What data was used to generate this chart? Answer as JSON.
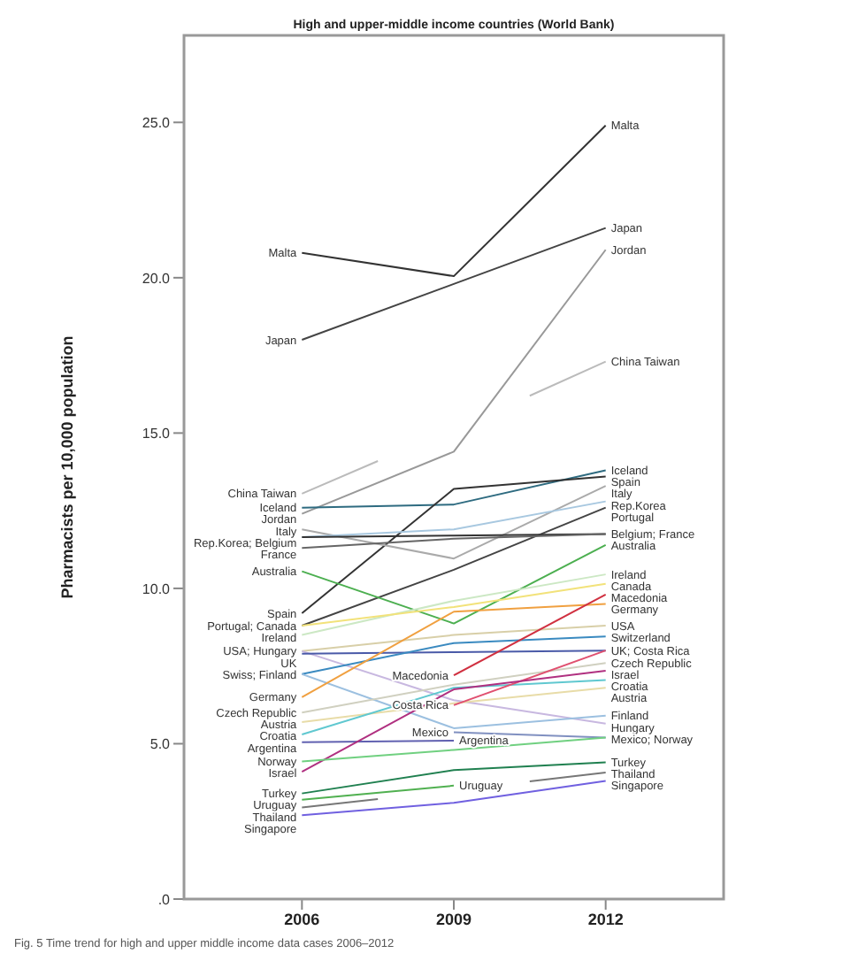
{
  "chart_data": {
    "type": "line",
    "title": "High and upper-middle income countries (World Bank)",
    "ylabel": "Pharmacists per 10,000 population",
    "x": [
      2006,
      2009,
      2012
    ],
    "xlim": [
      2003.67,
      2014.33
    ],
    "xticks": [
      2006,
      2009,
      2012
    ],
    "ylim": [
      0,
      27.8
    ],
    "yticks": [
      {
        "value": 0,
        "label": ".0"
      },
      {
        "value": 5,
        "label": "5.0"
      },
      {
        "value": 10,
        "label": "10.0"
      },
      {
        "value": 15,
        "label": "15.0"
      },
      {
        "value": 20,
        "label": "20.0"
      },
      {
        "value": 25,
        "label": "25.0"
      }
    ],
    "grid": false,
    "marker": "none",
    "line_style": "solid",
    "series": [
      {
        "color": "#333333",
        "values": [
          20.8,
          20.05,
          24.9
        ]
      },
      {
        "color": "#444444",
        "values": [
          18.0,
          19.8,
          21.6
        ]
      },
      {
        "color": "#999999",
        "values": [
          12.4,
          14.4,
          20.9
        ]
      },
      {
        "color": "#bbbbbb",
        "x": [
          2006,
          2007.5,
          2009,
          2010.5,
          2012
        ],
        "values": [
          13.05,
          14.1,
          null,
          16.2,
          17.3
        ]
      },
      {
        "color": "#2e6b80",
        "values": [
          12.6,
          12.7,
          13.8
        ]
      },
      {
        "color": "#333333",
        "values": [
          9.2,
          13.2,
          13.6
        ]
      },
      {
        "color": "#aaaaaa",
        "values": [
          11.9,
          10.96,
          13.3
        ]
      },
      {
        "color": "#a8c8e0",
        "values": [
          11.65,
          11.9,
          12.8
        ]
      },
      {
        "color": "#444444",
        "values": [
          8.8,
          10.6,
          12.6
        ]
      },
      {
        "color": "#333333",
        "values": [
          11.65,
          11.7,
          11.75
        ]
      },
      {
        "color": "#666666",
        "values": [
          11.3,
          11.6,
          11.75
        ]
      },
      {
        "color": "#4caf50",
        "values": [
          10.55,
          8.87,
          11.4
        ]
      },
      {
        "color": "#cce8c4",
        "values": [
          8.5,
          9.6,
          10.45
        ]
      },
      {
        "color": "#f2e27a",
        "values": [
          8.8,
          9.4,
          10.15
        ]
      },
      {
        "color": "#d8cfa8",
        "values": [
          7.98,
          8.5,
          8.8
        ]
      },
      {
        "color": "#c8b8e0",
        "values": [
          7.98,
          6.4,
          5.65
        ]
      },
      {
        "color": "#4a5aa8",
        "values": [
          7.9,
          7.95,
          8.0
        ]
      },
      {
        "color": "#3a8ac0",
        "values": [
          7.24,
          8.24,
          8.45
        ]
      },
      {
        "color": "#9cc0e0",
        "values": [
          7.24,
          5.5,
          5.9
        ]
      },
      {
        "color": "#f0a040",
        "values": [
          6.5,
          9.25,
          9.5
        ]
      },
      {
        "color": "#d0d0c0",
        "values": [
          6.0,
          6.9,
          7.6
        ]
      },
      {
        "color": "#e8dca8",
        "values": [
          5.7,
          6.3,
          6.8
        ]
      },
      {
        "color": "#60c8d0",
        "values": [
          5.3,
          6.8,
          7.05
        ]
      },
      {
        "color": "#6060b0",
        "values": [
          5.05,
          5.1,
          null
        ]
      },
      {
        "color": "#8090c0",
        "values": [
          null,
          5.37,
          5.2
        ]
      },
      {
        "color": "#d03040",
        "values": [
          null,
          7.2,
          9.8
        ]
      },
      {
        "color": "#e05070",
        "values": [
          null,
          6.24,
          8.0
        ]
      },
      {
        "color": "#b03080",
        "values": [
          4.1,
          6.75,
          7.35
        ]
      },
      {
        "color": "#70d080",
        "values": [
          4.43,
          4.8,
          5.2
        ]
      },
      {
        "color": "#208050",
        "values": [
          3.4,
          4.15,
          4.4
        ]
      },
      {
        "color": "#50b050",
        "values": [
          3.2,
          3.65,
          null
        ]
      },
      {
        "color": "#777777",
        "x": [
          2006,
          2007.5,
          2009,
          2010.5,
          2012
        ],
        "values": [
          2.95,
          3.22,
          null,
          3.79,
          4.07
        ]
      },
      {
        "color": "#7060e0",
        "values": [
          2.7,
          3.1,
          3.8
        ]
      }
    ],
    "annotations": [
      {
        "text": "Malta",
        "x": 2006,
        "y": 20.8
      },
      {
        "text": "Japan",
        "x": 2006,
        "y": 18.0
      },
      {
        "text": "China Taiwan",
        "x": 2006,
        "y": 13.05
      },
      {
        "text": "Iceland",
        "x": 2006,
        "y": 12.6
      },
      {
        "text": "Jordan",
        "x": 2006,
        "y": 12.4
      },
      {
        "text": "Italy",
        "x": 2006,
        "y": 11.9
      },
      {
        "text": "Rep.Korea; Belgium",
        "x": 2006,
        "y": 11.65
      },
      {
        "text": "France",
        "x": 2006,
        "y": 11.3
      },
      {
        "text": "Australia",
        "x": 2006,
        "y": 10.55
      },
      {
        "text": "Spain",
        "x": 2006,
        "y": 9.2
      },
      {
        "text": "Portugal; Canada",
        "x": 2006,
        "y": 8.8
      },
      {
        "text": "Ireland",
        "x": 2006,
        "y": 8.5
      },
      {
        "text": "USA; Hungary",
        "x": 2006,
        "y": 7.98
      },
      {
        "text": "UK",
        "x": 2006,
        "y": 7.9
      },
      {
        "text": "Swiss; Finland",
        "x": 2006,
        "y": 7.24
      },
      {
        "text": "Germany",
        "x": 2006,
        "y": 6.5
      },
      {
        "text": "Czech Republic",
        "x": 2006,
        "y": 6.0
      },
      {
        "text": "Austria",
        "x": 2006,
        "y": 5.7
      },
      {
        "text": "Croatia",
        "x": 2006,
        "y": 5.3
      },
      {
        "text": "Argentina",
        "x": 2006,
        "y": 5.05
      },
      {
        "text": "Norway",
        "x": 2006,
        "y": 4.43
      },
      {
        "text": "Israel",
        "x": 2006,
        "y": 4.1
      },
      {
        "text": "Turkey",
        "x": 2006,
        "y": 3.4
      },
      {
        "text": "Uruguay",
        "x": 2006,
        "y": 3.2
      },
      {
        "text": "Thailand",
        "x": 2006,
        "y": 2.95
      },
      {
        "text": "Singapore",
        "x": 2006,
        "y": 2.7
      },
      {
        "text": "Macedonia",
        "x": 2009,
        "y": 7.2
      },
      {
        "text": "Costa Rica",
        "x": 2009,
        "y": 6.24
      },
      {
        "text": "Mexico",
        "x": 2009,
        "y": 5.37
      },
      {
        "text": "Argentina",
        "x": 2009,
        "y": 5.1
      },
      {
        "text": "Uruguay",
        "x": 2009,
        "y": 3.65
      },
      {
        "text": "Malta",
        "x": 2012,
        "y": 24.9
      },
      {
        "text": "Japan",
        "x": 2012,
        "y": 21.6
      },
      {
        "text": "Jordan",
        "x": 2012,
        "y": 20.9
      },
      {
        "text": "China Taiwan",
        "x": 2012,
        "y": 17.3
      },
      {
        "text": "Iceland",
        "x": 2012,
        "y": 13.8
      },
      {
        "text": "Spain",
        "x": 2012,
        "y": 13.6
      },
      {
        "text": "Italy",
        "x": 2012,
        "y": 13.3
      },
      {
        "text": "Rep.Korea",
        "x": 2012,
        "y": 12.8
      },
      {
        "text": "Portugal",
        "x": 2012,
        "y": 12.6
      },
      {
        "text": "Belgium; France",
        "x": 2012,
        "y": 11.75
      },
      {
        "text": "Australia",
        "x": 2012,
        "y": 11.4
      },
      {
        "text": "Ireland",
        "x": 2012,
        "y": 10.45
      },
      {
        "text": "Canada",
        "x": 2012,
        "y": 10.15
      },
      {
        "text": "Macedonia",
        "x": 2012,
        "y": 9.8
      },
      {
        "text": "Germany",
        "x": 2012,
        "y": 9.5
      },
      {
        "text": "USA",
        "x": 2012,
        "y": 8.8
      },
      {
        "text": "Switzerland",
        "x": 2012,
        "y": 8.45
      },
      {
        "text": "UK; Costa Rica",
        "x": 2012,
        "y": 8.0
      },
      {
        "text": "Czech Republic",
        "x": 2012,
        "y": 7.6
      },
      {
        "text": "Israel",
        "x": 2012,
        "y": 7.35
      },
      {
        "text": "Croatia",
        "x": 2012,
        "y": 7.05
      },
      {
        "text": "Austria",
        "x": 2012,
        "y": 6.8
      },
      {
        "text": "Finland",
        "x": 2012,
        "y": 5.9
      },
      {
        "text": "Hungary",
        "x": 2012,
        "y": 5.65
      },
      {
        "text": "Mexico; Norway",
        "x": 2012,
        "y": 5.2
      },
      {
        "text": "Turkey",
        "x": 2012,
        "y": 4.4
      },
      {
        "text": "Thailand",
        "x": 2012,
        "y": 4.07
      },
      {
        "text": "Singapore",
        "x": 2012,
        "y": 3.8
      },
      "Fig. 5 Time trend for high and upper middle income data cases 2006–2012"
    ]
  }
}
